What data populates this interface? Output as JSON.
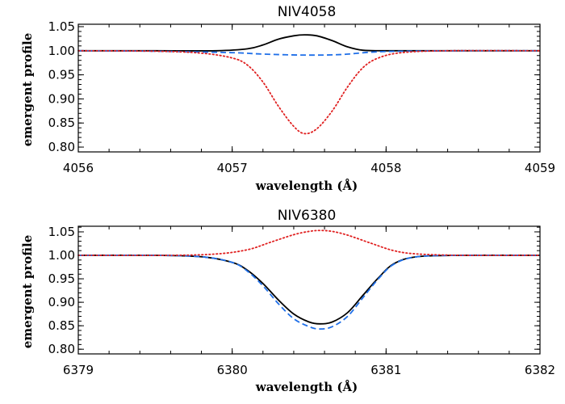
{
  "chart_data": [
    {
      "type": "line",
      "title": "NIV4058",
      "xlabel": "wavelength (Å)",
      "ylabel": "emergent profile",
      "xlim": [
        4056,
        4059
      ],
      "ylim": [
        0.79,
        1.055
      ],
      "xticks": [
        4056,
        4057,
        4058,
        4059
      ],
      "yticks": [
        0.8,
        0.85,
        0.9,
        0.95,
        1.0,
        1.05
      ],
      "ytick_labels": [
        "0.80",
        "0.85",
        "0.90",
        "0.95",
        "1.00",
        "1.05"
      ],
      "grid": false,
      "series": [
        {
          "style": "solid",
          "color": "#000000",
          "x": [
            4056.0,
            4056.5,
            4056.9,
            4057.1,
            4057.2,
            4057.3,
            4057.4,
            4057.47,
            4057.55,
            4057.65,
            4057.75,
            4057.85,
            4058.0,
            4058.5,
            4059.0
          ],
          "y": [
            1.0,
            1.0,
            1.0,
            1.004,
            1.012,
            1.024,
            1.031,
            1.033,
            1.031,
            1.021,
            1.008,
            1.001,
            1.0,
            1.0,
            1.0
          ]
        },
        {
          "style": "dashed",
          "color": "#1f6fe8",
          "x": [
            4056.0,
            4056.5,
            4057.0,
            4057.2,
            4057.47,
            4057.7,
            4057.9,
            4058.1,
            4058.5,
            4059.0
          ],
          "y": [
            1.0,
            0.999,
            0.996,
            0.993,
            0.991,
            0.992,
            0.997,
            0.999,
            1.0,
            1.0
          ]
        },
        {
          "style": "dotted",
          "color": "#e02020",
          "x": [
            4056.0,
            4056.5,
            4056.8,
            4057.0,
            4057.1,
            4057.2,
            4057.3,
            4057.4,
            4057.47,
            4057.55,
            4057.65,
            4057.75,
            4057.85,
            4057.95,
            4058.1,
            4058.4,
            4059.0
          ],
          "y": [
            1.0,
            0.999,
            0.995,
            0.985,
            0.97,
            0.935,
            0.885,
            0.843,
            0.828,
            0.838,
            0.875,
            0.925,
            0.965,
            0.985,
            0.996,
            1.0,
            1.0
          ]
        }
      ]
    },
    {
      "type": "line",
      "title": "NIV6380",
      "xlabel": "wavelength (Å)",
      "ylabel": "emergent profile",
      "xlim": [
        6379,
        6382
      ],
      "ylim": [
        0.79,
        1.062
      ],
      "xticks": [
        6379,
        6380,
        6381,
        6382
      ],
      "yticks": [
        0.8,
        0.85,
        0.9,
        0.95,
        1.0,
        1.05
      ],
      "ytick_labels": [
        "0.80",
        "0.85",
        "0.90",
        "0.95",
        "1.00",
        "1.05"
      ],
      "grid": false,
      "series": [
        {
          "style": "solid",
          "color": "#000000",
          "x": [
            6379.0,
            6379.5,
            6379.8,
            6380.0,
            6380.1,
            6380.2,
            6380.3,
            6380.4,
            6380.5,
            6380.57,
            6380.65,
            6380.75,
            6380.85,
            6380.95,
            6381.05,
            6381.2,
            6381.5,
            6382.0
          ],
          "y": [
            1.0,
            1.0,
            0.997,
            0.985,
            0.968,
            0.94,
            0.905,
            0.875,
            0.858,
            0.854,
            0.858,
            0.878,
            0.915,
            0.952,
            0.982,
            0.997,
            1.0,
            1.0
          ]
        },
        {
          "style": "dashed",
          "color": "#1f6fe8",
          "x": [
            6379.0,
            6379.5,
            6379.8,
            6380.0,
            6380.1,
            6380.2,
            6380.3,
            6380.4,
            6380.5,
            6380.57,
            6380.65,
            6380.75,
            6380.85,
            6380.95,
            6381.05,
            6381.2,
            6381.5,
            6382.0
          ],
          "y": [
            1.0,
            1.0,
            0.997,
            0.985,
            0.966,
            0.935,
            0.897,
            0.865,
            0.848,
            0.843,
            0.848,
            0.87,
            0.91,
            0.95,
            0.981,
            0.997,
            1.0,
            1.0
          ]
        },
        {
          "style": "dotted",
          "color": "#e02020",
          "x": [
            6379.0,
            6379.6,
            6379.9,
            6380.1,
            6380.25,
            6380.4,
            6380.5,
            6380.57,
            6380.65,
            6380.75,
            6380.9,
            6381.05,
            6381.2,
            6381.5,
            6382.0
          ],
          "y": [
            1.0,
            1.0,
            1.003,
            1.012,
            1.028,
            1.044,
            1.051,
            1.053,
            1.051,
            1.043,
            1.026,
            1.01,
            1.003,
            1.0,
            1.0
          ]
        }
      ]
    }
  ]
}
